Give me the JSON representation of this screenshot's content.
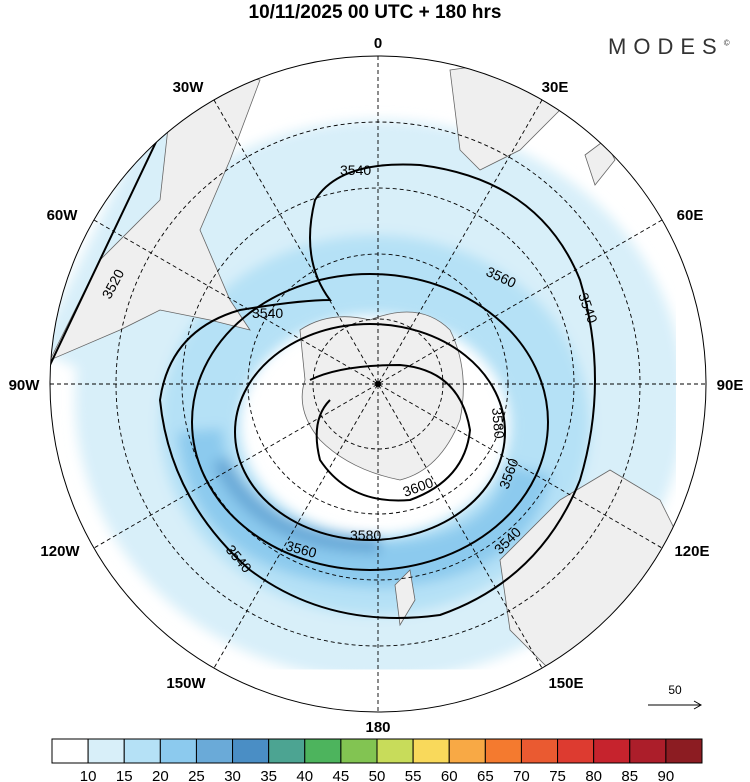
{
  "title": "10/11/2025  00 UTC  + 180 hrs",
  "logo": {
    "text": "MODES",
    "mark": "©"
  },
  "map": {
    "projection": "south polar stereographic",
    "longitude_labels": {
      "lon_0": "0",
      "lon_30e": "30E",
      "lon_60e": "60E",
      "lon_90e": "90E",
      "lon_120e": "120E",
      "lon_150e": "150E",
      "lon_180": "180",
      "lon_150w": "150W",
      "lon_120w": "120W",
      "lon_90w": "90W",
      "lon_60w": "60W",
      "lon_30w": "30W"
    },
    "contour_labels": {
      "c3520": "3520",
      "c3540_top": "3540",
      "c3540_left": "3540",
      "c3540_right": "3540",
      "c3540_bl": "3540",
      "c3540_br": "3540",
      "c3560_top": "3560",
      "c3560_right": "3560",
      "c3560_bottom": "3560",
      "c3580_right": "3580",
      "c3580_bottom": "3580",
      "c3600": "3600"
    },
    "vector_reference": "50"
  },
  "colorbar": {
    "labels": [
      "10",
      "15",
      "20",
      "25",
      "30",
      "35",
      "40",
      "45",
      "50",
      "55",
      "60",
      "65",
      "70",
      "75",
      "80",
      "85",
      "90"
    ],
    "colors": [
      "#ffffff",
      "#d8eff9",
      "#b5e1f6",
      "#8ccaee",
      "#6aaad8",
      "#4a8ec5",
      "#4ca492",
      "#4db45d",
      "#82c452",
      "#c8dc5a",
      "#f9d95b",
      "#f8a945",
      "#f47a2f",
      "#ea5a31",
      "#dd3b30",
      "#c6232d",
      "#ac1e2a",
      "#8c1c22"
    ]
  }
}
